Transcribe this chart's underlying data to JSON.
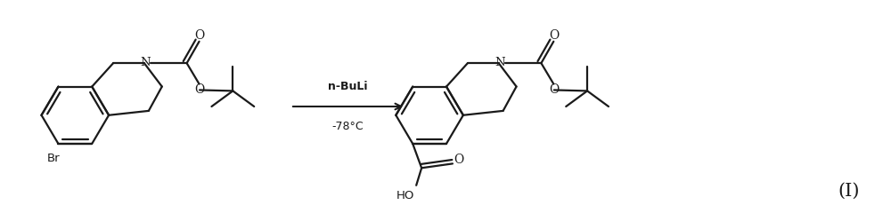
{
  "background_color": "#ffffff",
  "line_color": "#1a1a1a",
  "line_width": 1.6,
  "text_color": "#1a1a1a",
  "label_I": "(Ⅰ)",
  "reagent_top": "n-BuLi",
  "reagent_bottom": "-78°C",
  "fig_width": 10.0,
  "fig_height": 2.4,
  "dpi": 100
}
